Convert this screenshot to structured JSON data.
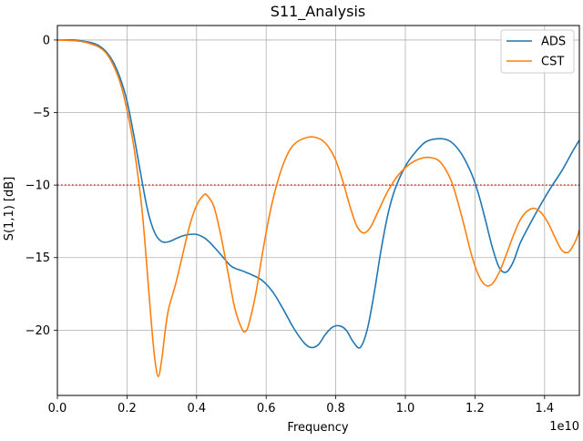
{
  "chart_data": {
    "type": "line",
    "title": "S11_Analysis",
    "xlabel": "Frequency",
    "ylabel": "S(1,1) [dB]",
    "x_offset_label": "1e10",
    "xlim": [
      0.0,
      1.5
    ],
    "ylim": [
      -24.5,
      1.0
    ],
    "x_ticks": [
      0.0,
      0.2,
      0.4,
      0.6,
      0.8,
      1.0,
      1.2,
      1.4
    ],
    "x_tick_labels": [
      "0.0",
      "0.2",
      "0.4",
      "0.6",
      "0.8",
      "1.0",
      "1.2",
      "1.4"
    ],
    "y_ticks": [
      0,
      -5,
      -10,
      -15,
      -20
    ],
    "y_tick_labels": [
      "0",
      "−5",
      "−10",
      "−15",
      "−20"
    ],
    "grid": true,
    "legend_position": "top-right",
    "reference_line": {
      "y": -10,
      "color": "#d62728",
      "style": "dotted"
    },
    "series": [
      {
        "name": "ADS",
        "color": "#1f77b4",
        "points": [
          [
            0.0,
            0.0
          ],
          [
            0.05,
            0.0
          ],
          [
            0.08,
            -0.1
          ],
          [
            0.1,
            -0.2
          ],
          [
            0.12,
            -0.4
          ],
          [
            0.14,
            -0.8
          ],
          [
            0.16,
            -1.5
          ],
          [
            0.18,
            -2.6
          ],
          [
            0.2,
            -4.2
          ],
          [
            0.22,
            -6.6
          ],
          [
            0.24,
            -9.3
          ],
          [
            0.26,
            -11.8
          ],
          [
            0.28,
            -13.3
          ],
          [
            0.3,
            -13.9
          ],
          [
            0.32,
            -13.9
          ],
          [
            0.34,
            -13.7
          ],
          [
            0.36,
            -13.5
          ],
          [
            0.38,
            -13.4
          ],
          [
            0.4,
            -13.4
          ],
          [
            0.42,
            -13.6
          ],
          [
            0.44,
            -14.0
          ],
          [
            0.47,
            -14.8
          ],
          [
            0.5,
            -15.6
          ],
          [
            0.53,
            -15.9
          ],
          [
            0.56,
            -16.2
          ],
          [
            0.59,
            -16.6
          ],
          [
            0.62,
            -17.4
          ],
          [
            0.65,
            -18.6
          ],
          [
            0.68,
            -19.9
          ],
          [
            0.71,
            -20.9
          ],
          [
            0.73,
            -21.2
          ],
          [
            0.75,
            -21.0
          ],
          [
            0.77,
            -20.3
          ],
          [
            0.79,
            -19.8
          ],
          [
            0.81,
            -19.7
          ],
          [
            0.83,
            -20.0
          ],
          [
            0.85,
            -20.8
          ],
          [
            0.87,
            -21.2
          ],
          [
            0.89,
            -20.0
          ],
          [
            0.91,
            -17.5
          ],
          [
            0.93,
            -14.5
          ],
          [
            0.95,
            -12.0
          ],
          [
            0.97,
            -10.3
          ],
          [
            1.0,
            -8.7
          ],
          [
            1.03,
            -7.7
          ],
          [
            1.06,
            -7.0
          ],
          [
            1.1,
            -6.8
          ],
          [
            1.13,
            -7.0
          ],
          [
            1.16,
            -7.8
          ],
          [
            1.19,
            -9.2
          ],
          [
            1.21,
            -10.6
          ],
          [
            1.23,
            -12.4
          ],
          [
            1.25,
            -14.3
          ],
          [
            1.27,
            -15.7
          ],
          [
            1.29,
            -16.0
          ],
          [
            1.31,
            -15.3
          ],
          [
            1.33,
            -14.0
          ],
          [
            1.36,
            -12.6
          ],
          [
            1.39,
            -11.3
          ],
          [
            1.42,
            -10.1
          ],
          [
            1.45,
            -9.0
          ],
          [
            1.48,
            -7.7
          ],
          [
            1.5,
            -6.9
          ]
        ]
      },
      {
        "name": "CST",
        "color": "#ff7f0e",
        "points": [
          [
            0.0,
            0.0
          ],
          [
            0.05,
            -0.05
          ],
          [
            0.08,
            -0.15
          ],
          [
            0.1,
            -0.3
          ],
          [
            0.12,
            -0.5
          ],
          [
            0.14,
            -0.9
          ],
          [
            0.16,
            -1.7
          ],
          [
            0.18,
            -2.9
          ],
          [
            0.2,
            -4.8
          ],
          [
            0.22,
            -7.4
          ],
          [
            0.24,
            -11.0
          ],
          [
            0.25,
            -13.5
          ],
          [
            0.26,
            -16.5
          ],
          [
            0.27,
            -19.5
          ],
          [
            0.28,
            -22.0
          ],
          [
            0.29,
            -23.2
          ],
          [
            0.3,
            -22.0
          ],
          [
            0.31,
            -20.0
          ],
          [
            0.32,
            -18.5
          ],
          [
            0.34,
            -16.8
          ],
          [
            0.36,
            -14.8
          ],
          [
            0.38,
            -12.8
          ],
          [
            0.4,
            -11.4
          ],
          [
            0.42,
            -10.7
          ],
          [
            0.43,
            -10.7
          ],
          [
            0.45,
            -11.5
          ],
          [
            0.47,
            -13.5
          ],
          [
            0.49,
            -16.0
          ],
          [
            0.51,
            -18.5
          ],
          [
            0.53,
            -19.9
          ],
          [
            0.54,
            -20.1
          ],
          [
            0.55,
            -19.6
          ],
          [
            0.57,
            -17.5
          ],
          [
            0.59,
            -14.6
          ],
          [
            0.61,
            -12.0
          ],
          [
            0.63,
            -10.0
          ],
          [
            0.65,
            -8.5
          ],
          [
            0.67,
            -7.5
          ],
          [
            0.69,
            -7.0
          ],
          [
            0.72,
            -6.7
          ],
          [
            0.74,
            -6.7
          ],
          [
            0.76,
            -6.9
          ],
          [
            0.78,
            -7.4
          ],
          [
            0.8,
            -8.3
          ],
          [
            0.82,
            -9.7
          ],
          [
            0.84,
            -11.4
          ],
          [
            0.86,
            -12.8
          ],
          [
            0.88,
            -13.3
          ],
          [
            0.9,
            -12.9
          ],
          [
            0.92,
            -11.9
          ],
          [
            0.95,
            -10.4
          ],
          [
            0.98,
            -9.3
          ],
          [
            1.01,
            -8.6
          ],
          [
            1.04,
            -8.2
          ],
          [
            1.07,
            -8.1
          ],
          [
            1.1,
            -8.4
          ],
          [
            1.13,
            -9.6
          ],
          [
            1.15,
            -11.1
          ],
          [
            1.17,
            -12.9
          ],
          [
            1.19,
            -14.8
          ],
          [
            1.21,
            -16.2
          ],
          [
            1.23,
            -16.9
          ],
          [
            1.25,
            -16.8
          ],
          [
            1.27,
            -16.0
          ],
          [
            1.29,
            -14.8
          ],
          [
            1.31,
            -13.5
          ],
          [
            1.33,
            -12.4
          ],
          [
            1.35,
            -11.8
          ],
          [
            1.37,
            -11.6
          ],
          [
            1.39,
            -11.9
          ],
          [
            1.41,
            -12.6
          ],
          [
            1.43,
            -13.6
          ],
          [
            1.45,
            -14.5
          ],
          [
            1.47,
            -14.6
          ],
          [
            1.49,
            -13.8
          ],
          [
            1.5,
            -13.1
          ]
        ]
      }
    ]
  }
}
